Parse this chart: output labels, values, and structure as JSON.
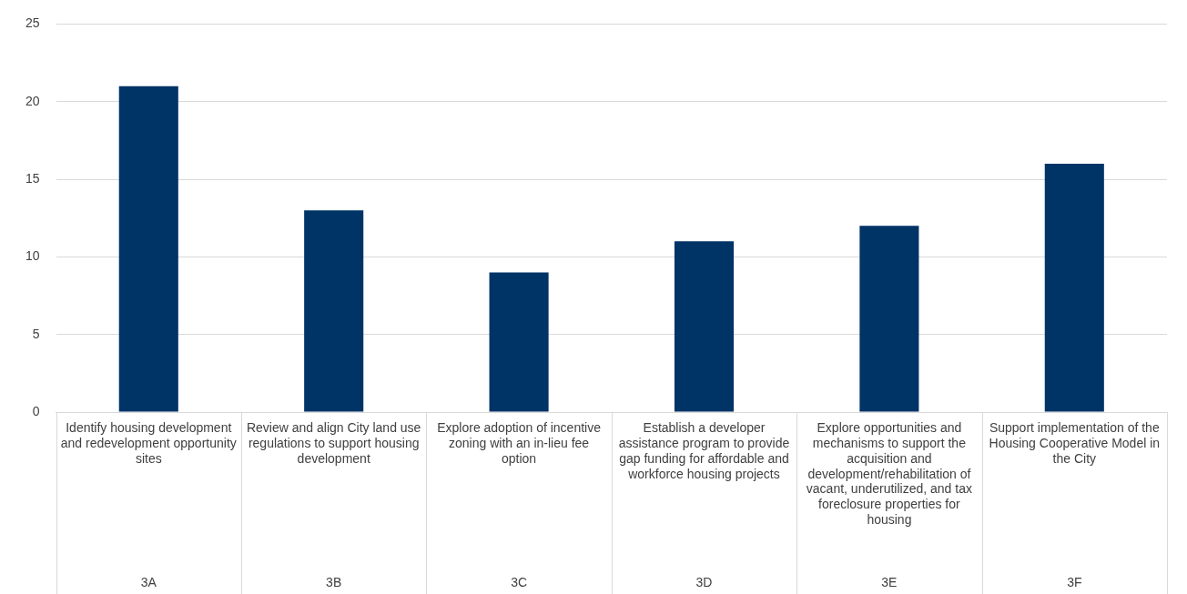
{
  "chart_data": {
    "type": "bar",
    "categories": [
      "Identify housing development and redevelopment opportunity sites",
      "Review and align City land use regulations to support housing development",
      "Explore adoption of incentive zoning with an in-lieu fee option",
      "Establish a developer assistance program to provide gap funding for affordable and workforce housing projects",
      "Explore opportunities and mechanisms to support the acquisition and development/rehabilitation of vacant, underutilized, and tax foreclosure properties for housing",
      "Support implementation of the Housing Cooperative Model in the City"
    ],
    "values": [
      21,
      13,
      9,
      11,
      12,
      16
    ],
    "color": "#003366",
    "ylim": [
      0,
      25
    ],
    "yticks": [
      0,
      5,
      10,
      15,
      20,
      25
    ],
    "grid": "y",
    "annotations": [
      "3A",
      "3B",
      "3C",
      "3D",
      "3E",
      "3F"
    ]
  }
}
